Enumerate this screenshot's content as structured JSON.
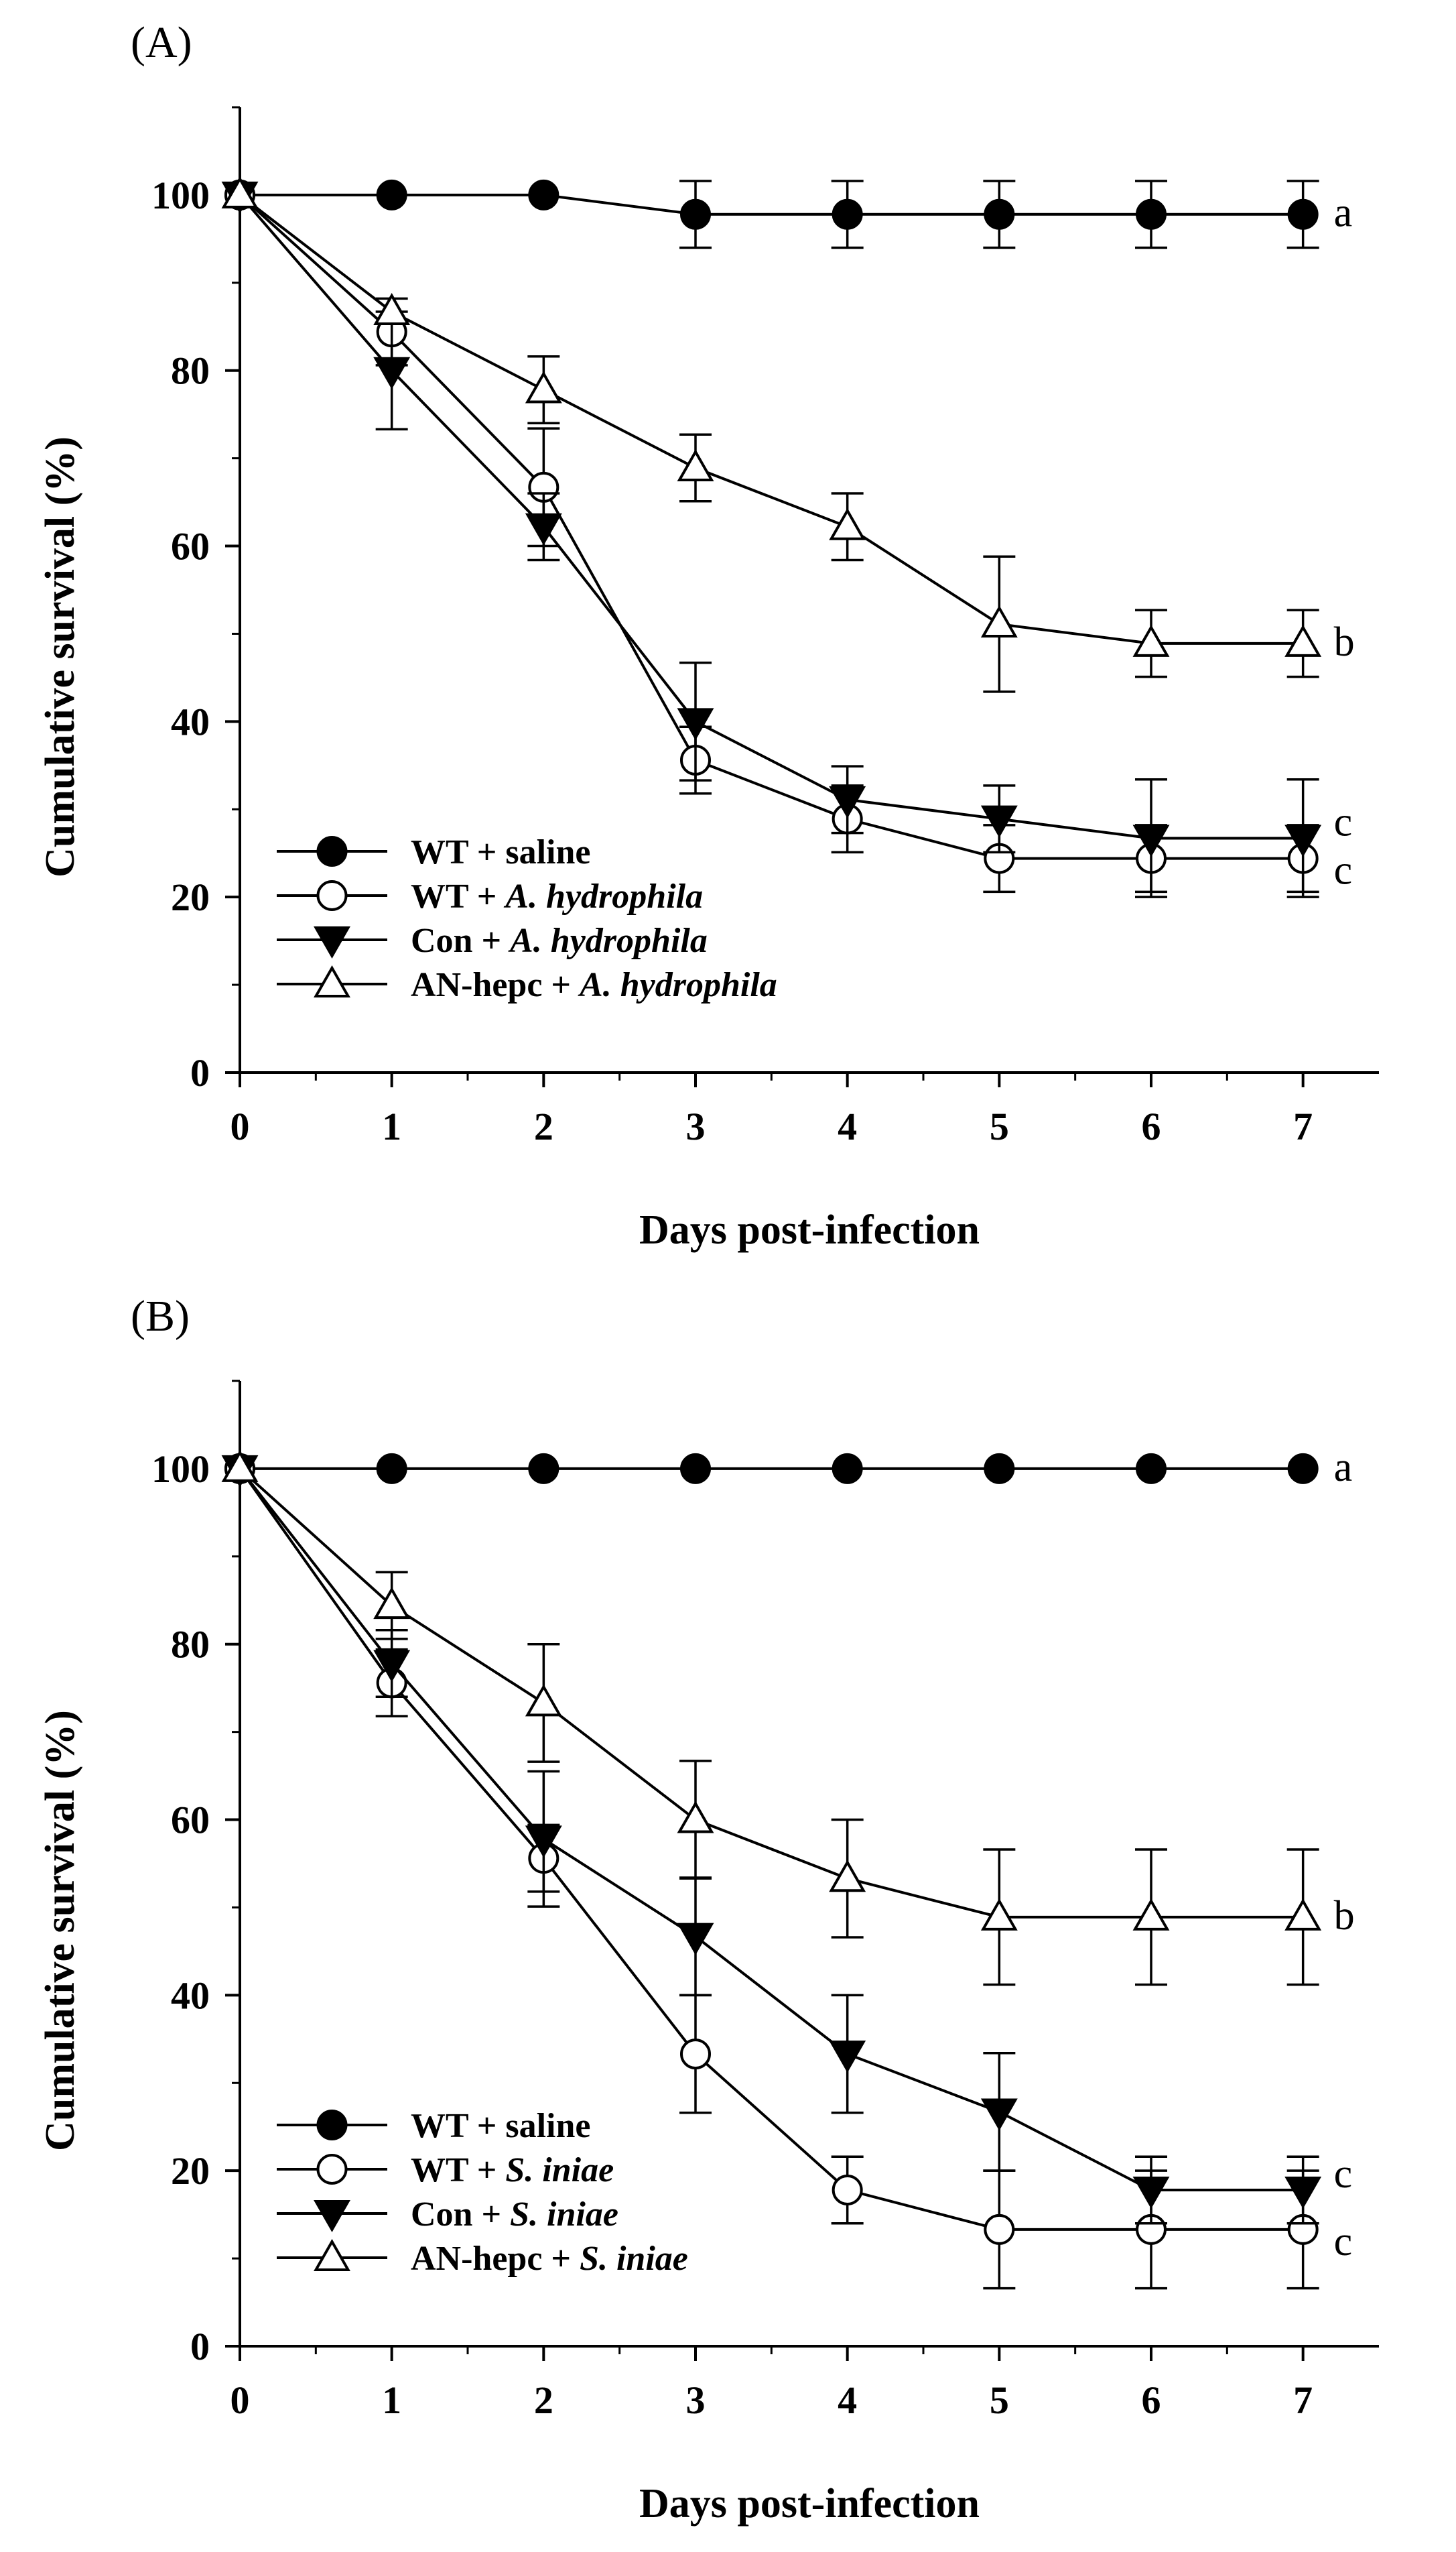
{
  "chart_data": [
    {
      "type": "line",
      "panel_label": "(A)",
      "xlabel": "Days post-infection",
      "ylabel": "Cumulative survival (%)",
      "xlim": [
        0,
        7.5
      ],
      "ylim": [
        0,
        110
      ],
      "xticks": [
        "0",
        "1",
        "2",
        "3",
        "4",
        "5",
        "6",
        "7"
      ],
      "yticks": [
        "0",
        "20",
        "40",
        "60",
        "80",
        "100"
      ],
      "x": [
        0,
        1,
        2,
        3,
        4,
        5,
        6,
        7
      ],
      "legend_position": "bottom-left",
      "series": [
        {
          "name": "WT + saline",
          "label_prefix": "WT + ",
          "label_italic": "saline",
          "marker": "filled-circle",
          "values": [
            100,
            100,
            100,
            97.8,
            97.8,
            97.8,
            97.8,
            97.8
          ],
          "errors": [
            0,
            0,
            0,
            3.8,
            3.8,
            3.8,
            3.8,
            3.8
          ],
          "significance": "a"
        },
        {
          "name": "WT + A. hydrophila",
          "label_prefix": "WT + ",
          "label_italic": "A. hydrophila",
          "marker": "open-circle",
          "values": [
            100,
            84.4,
            66.7,
            35.6,
            28.9,
            24.4,
            24.4,
            24.4
          ],
          "errors": [
            0,
            3.8,
            6.7,
            3.8,
            3.8,
            3.8,
            3.8,
            3.8
          ],
          "significance": "c"
        },
        {
          "name": "Con + A. hydrophila",
          "label_prefix": "Con + ",
          "label_italic": "A. hydrophila",
          "marker": "filled-triangle-down",
          "values": [
            100,
            80.0,
            62.2,
            40.0,
            31.1,
            28.9,
            26.7,
            26.7
          ],
          "errors": [
            0,
            6.7,
            3.8,
            6.7,
            3.8,
            3.8,
            6.7,
            6.7
          ],
          "significance": "c"
        },
        {
          "name": "AN-hepc + A. hydrophila",
          "label_prefix": "AN-hepc + ",
          "label_italic": "A. hydrophila",
          "marker": "open-triangle-up",
          "values": [
            100,
            86.7,
            77.8,
            68.9,
            62.2,
            51.1,
            48.9,
            48.9
          ],
          "errors": [
            0,
            0,
            3.8,
            3.8,
            3.8,
            7.7,
            3.8,
            3.8
          ],
          "significance": "b"
        }
      ]
    },
    {
      "type": "line",
      "panel_label": "(B)",
      "xlabel": "Days post-infection",
      "ylabel": "Cumulative survival (%)",
      "xlim": [
        0,
        7.5
      ],
      "ylim": [
        0,
        110
      ],
      "xticks": [
        "0",
        "1",
        "2",
        "3",
        "4",
        "5",
        "6",
        "7"
      ],
      "yticks": [
        "0",
        "20",
        "40",
        "60",
        "80",
        "100"
      ],
      "x": [
        0,
        1,
        2,
        3,
        4,
        5,
        6,
        7
      ],
      "legend_position": "bottom-left",
      "series": [
        {
          "name": "WT + saline",
          "label_prefix": "WT + ",
          "label_italic": "saline",
          "marker": "filled-circle",
          "values": [
            100,
            100,
            100,
            100,
            100,
            100,
            100,
            100
          ],
          "errors": [
            0,
            0,
            0,
            0,
            0,
            0,
            0,
            0
          ],
          "significance": "a"
        },
        {
          "name": "WT + S. iniae",
          "label_prefix": "WT + ",
          "label_italic": "S. iniae",
          "marker": "open-circle",
          "values": [
            100,
            75.6,
            55.6,
            33.3,
            17.8,
            13.3,
            13.3,
            13.3
          ],
          "errors": [
            0,
            3.8,
            3.8,
            6.7,
            3.8,
            6.7,
            6.7,
            6.7
          ],
          "significance": "c"
        },
        {
          "name": "Con + S. iniae",
          "label_prefix": "Con + ",
          "label_italic": "S. iniae",
          "marker": "filled-triangle-down",
          "values": [
            100,
            77.8,
            57.8,
            46.7,
            33.3,
            26.7,
            17.8,
            17.8
          ],
          "errors": [
            0,
            3.8,
            7.7,
            6.7,
            6.7,
            6.7,
            3.8,
            3.8
          ],
          "significance": "c"
        },
        {
          "name": "AN-hepc + S. iniae",
          "label_prefix": "AN-hepc + ",
          "label_italic": "S. iniae",
          "marker": "open-triangle-up",
          "values": [
            100,
            84.4,
            73.3,
            60.0,
            53.3,
            48.9,
            48.9,
            48.9
          ],
          "errors": [
            0,
            3.8,
            6.7,
            6.7,
            6.7,
            7.7,
            7.7,
            7.7
          ],
          "significance": "b"
        }
      ]
    }
  ]
}
